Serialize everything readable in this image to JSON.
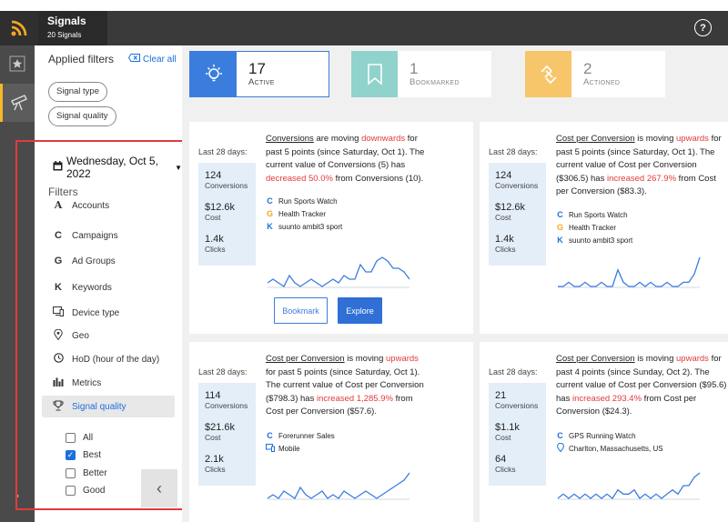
{
  "app": {
    "title": "Signals",
    "subtitle": "20 Signals",
    "help_icon": "?"
  },
  "rail": {
    "items": [
      "star-icon",
      "telescope-icon"
    ],
    "collapse_glyph": "›"
  },
  "filters_panel": {
    "applied_title": "Applied filters",
    "clear_all": "Clear all",
    "chips": [
      "Signal type",
      "Signal quality"
    ],
    "date": "Wednesday, Oct 5, 2022",
    "filters_heading": "Filters",
    "items": [
      {
        "label": "Accounts",
        "icon": "A"
      },
      {
        "label": "Campaigns",
        "icon": "C"
      },
      {
        "label": "Ad Groups",
        "icon": "G"
      },
      {
        "label": "Keywords",
        "icon": "K"
      },
      {
        "label": "Device type",
        "icon": "device"
      },
      {
        "label": "Geo",
        "icon": "pin"
      },
      {
        "label": "HoD (hour of the day)",
        "icon": "clock"
      },
      {
        "label": "Metrics",
        "icon": "bars"
      },
      {
        "label": "Signal quality",
        "icon": "trophy"
      }
    ],
    "quality_options": [
      {
        "label": "All",
        "checked": false
      },
      {
        "label": "Best",
        "checked": true
      },
      {
        "label": "Better",
        "checked": false
      },
      {
        "label": "Good",
        "checked": false
      }
    ],
    "collapse_glyph": "‹"
  },
  "stats": [
    {
      "num": "17",
      "label": "Active",
      "color": "#3b7ddd"
    },
    {
      "num": "1",
      "label": "Bookmarked",
      "color": "#8fd3cc"
    },
    {
      "num": "2",
      "label": "Actioned",
      "color": "#f7c56a"
    }
  ],
  "cards": [
    {
      "last28": "Last 28 days:",
      "kpis": [
        {
          "val": "124",
          "lbl": "Conversions"
        },
        {
          "val": "$12.6k",
          "lbl": "Cost"
        },
        {
          "val": "1.4k",
          "lbl": "Clicks"
        }
      ],
      "metric": "Conversions",
      "t1": " are moving ",
      "direction": "downwards",
      "t2": " for past 5 points (since Saturday, Oct 1). The current value of Conversions (5) has ",
      "change": "decreased 50.0%",
      "t3": " from Conversions (10).",
      "tags": [
        {
          "icon": "C",
          "text": "Run Sports Watch"
        },
        {
          "icon": "G",
          "text": "Health Tracker"
        },
        {
          "icon": "K",
          "text": "suunto ambit3 sport"
        }
      ],
      "buttons": {
        "bookmark": "Bookmark",
        "explore": "Explore"
      }
    },
    {
      "last28": "Last 28 days:",
      "kpis": [
        {
          "val": "124",
          "lbl": "Conversions"
        },
        {
          "val": "$12.6k",
          "lbl": "Cost"
        },
        {
          "val": "1.4k",
          "lbl": "Clicks"
        }
      ],
      "metric": "Cost per Conversion",
      "t1": " is moving ",
      "direction": "upwards",
      "t2": " for past 5 points (since Saturday, Oct 1). The current value of Cost per Conversion ($306.5) has ",
      "change": "increased 267.9%",
      "t3": " from Cost per Conversion ($83.3).",
      "tags": [
        {
          "icon": "C",
          "text": "Run Sports Watch"
        },
        {
          "icon": "G",
          "text": "Health Tracker"
        },
        {
          "icon": "K",
          "text": "suunto ambit3 sport"
        }
      ]
    },
    {
      "last28": "Last 28 days:",
      "kpis": [
        {
          "val": "114",
          "lbl": "Conversions"
        },
        {
          "val": "$21.6k",
          "lbl": "Cost"
        },
        {
          "val": "2.1k",
          "lbl": "Clicks"
        }
      ],
      "metric": "Cost per Conversion",
      "t1": " is moving ",
      "direction": "upwards",
      "t2": " for past 5 points (since Saturday, Oct 1). The current value of Cost per Conversion ($798.3) has ",
      "change": "increased 1,285.9%",
      "t3": " from Cost per Conversion ($57.6).",
      "tags": [
        {
          "icon": "C",
          "text": "Forerunner Sales"
        },
        {
          "icon": "device",
          "text": "Mobile"
        }
      ]
    },
    {
      "last28": "Last 28 days:",
      "kpis": [
        {
          "val": "21",
          "lbl": "Conversions"
        },
        {
          "val": "$1.1k",
          "lbl": "Cost"
        },
        {
          "val": "64",
          "lbl": "Clicks"
        }
      ],
      "metric": "Cost per Conversion",
      "t1": " is moving ",
      "direction": "upwards",
      "t2": " for past 4 points (since Sunday, Oct 2). The current value of Cost per Conversion ($95.6) has ",
      "change": "increased 293.4%",
      "t3": " from Cost per Conversion ($24.3).",
      "tags": [
        {
          "icon": "C",
          "text": "GPS Running Watch"
        },
        {
          "icon": "pin",
          "text": "Charlton, Massachusetts, US"
        }
      ]
    }
  ],
  "sparklines": [
    [
      3,
      4,
      3,
      2,
      5,
      3,
      2,
      3,
      4,
      3,
      2,
      3,
      4,
      3,
      5,
      4,
      4,
      8,
      6,
      6,
      9,
      10,
      9,
      7,
      7,
      6,
      4
    ],
    [
      2,
      2,
      3,
      2,
      2,
      3,
      2,
      2,
      3,
      2,
      2,
      6,
      3,
      2,
      2,
      3,
      2,
      3,
      2,
      2,
      3,
      2,
      2,
      3,
      3,
      5,
      9
    ],
    [
      2,
      3,
      2,
      4,
      3,
      2,
      5,
      3,
      2,
      3,
      4,
      2,
      3,
      2,
      4,
      3,
      2,
      3,
      4,
      3,
      2,
      3,
      4,
      5,
      6,
      7,
      9
    ],
    [
      2,
      3,
      2,
      3,
      2,
      3,
      2,
      3,
      2,
      3,
      2,
      4,
      3,
      3,
      4,
      2,
      3,
      2,
      3,
      2,
      3,
      4,
      3,
      5,
      5,
      7,
      8
    ]
  ]
}
